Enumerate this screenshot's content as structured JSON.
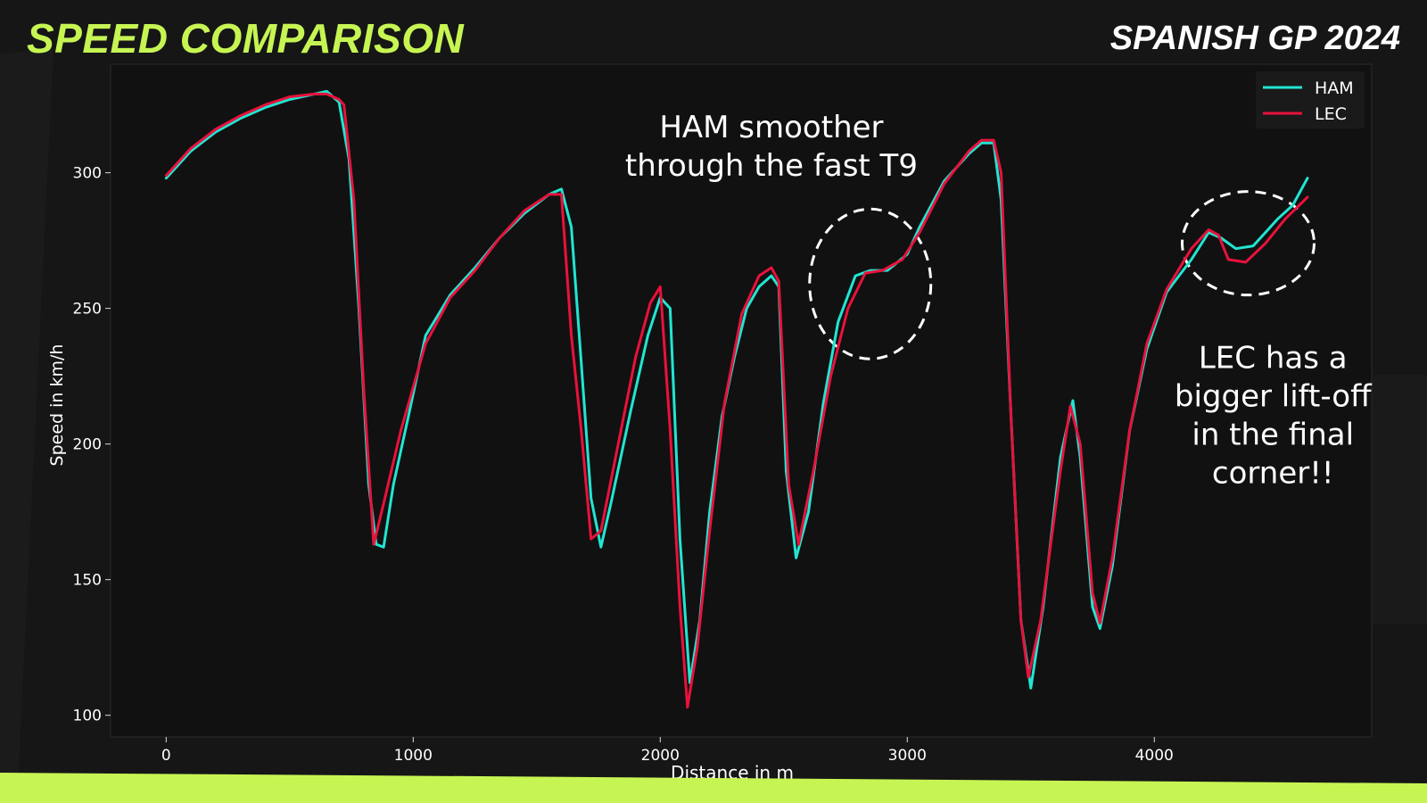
{
  "header": {
    "title": "SPEED COMPARISON",
    "race": "SPANISH GP 2024"
  },
  "colors": {
    "accent": "#c6f553",
    "HAM": "#22e5d2",
    "LEC": "#e8123c",
    "plot_bg": "#111111",
    "page_bg": "#161616"
  },
  "chart_data": {
    "type": "line",
    "title": "SPEED COMPARISON",
    "subtitle": "SPANISH GP 2024",
    "xlabel": "Distance in m",
    "ylabel": "Speed in km/h",
    "xlim": [
      -225,
      4880
    ],
    "ylim": [
      92,
      340
    ],
    "xticks": [
      0,
      1000,
      2000,
      3000,
      4000
    ],
    "yticks": [
      100,
      150,
      200,
      250,
      300
    ],
    "grid": false,
    "legend": "top-right",
    "series": [
      {
        "name": "HAM",
        "color": "#22e5d2",
        "points": [
          [
            0,
            298
          ],
          [
            100,
            308
          ],
          [
            200,
            315
          ],
          [
            300,
            320
          ],
          [
            400,
            324
          ],
          [
            500,
            327
          ],
          [
            600,
            329
          ],
          [
            650,
            330
          ],
          [
            700,
            326
          ],
          [
            740,
            305
          ],
          [
            780,
            250
          ],
          [
            820,
            185
          ],
          [
            850,
            163
          ],
          [
            880,
            162
          ],
          [
            920,
            185
          ],
          [
            980,
            210
          ],
          [
            1050,
            240
          ],
          [
            1150,
            255
          ],
          [
            1250,
            265
          ],
          [
            1350,
            276
          ],
          [
            1450,
            285
          ],
          [
            1550,
            292
          ],
          [
            1600,
            294
          ],
          [
            1640,
            280
          ],
          [
            1680,
            230
          ],
          [
            1720,
            180
          ],
          [
            1760,
            162
          ],
          [
            1800,
            178
          ],
          [
            1880,
            212
          ],
          [
            1950,
            240
          ],
          [
            2000,
            254
          ],
          [
            2040,
            250
          ],
          [
            2080,
            165
          ],
          [
            2120,
            112
          ],
          [
            2160,
            135
          ],
          [
            2200,
            175
          ],
          [
            2250,
            210
          ],
          [
            2300,
            232
          ],
          [
            2350,
            250
          ],
          [
            2400,
            258
          ],
          [
            2450,
            262
          ],
          [
            2480,
            258
          ],
          [
            2510,
            190
          ],
          [
            2550,
            158
          ],
          [
            2600,
            175
          ],
          [
            2660,
            215
          ],
          [
            2720,
            245
          ],
          [
            2790,
            262
          ],
          [
            2850,
            264
          ],
          [
            2920,
            264
          ],
          [
            3000,
            270
          ],
          [
            3050,
            280
          ],
          [
            3150,
            297
          ],
          [
            3250,
            307
          ],
          [
            3300,
            311
          ],
          [
            3350,
            311
          ],
          [
            3380,
            290
          ],
          [
            3420,
            210
          ],
          [
            3460,
            135
          ],
          [
            3500,
            110
          ],
          [
            3550,
            140
          ],
          [
            3620,
            195
          ],
          [
            3670,
            216
          ],
          [
            3700,
            195
          ],
          [
            3750,
            140
          ],
          [
            3780,
            132
          ],
          [
            3830,
            155
          ],
          [
            3900,
            205
          ],
          [
            3970,
            235
          ],
          [
            4050,
            256
          ],
          [
            4150,
            268
          ],
          [
            4220,
            278
          ],
          [
            4270,
            276
          ],
          [
            4330,
            272
          ],
          [
            4400,
            273
          ],
          [
            4450,
            278
          ],
          [
            4500,
            283
          ],
          [
            4560,
            288
          ],
          [
            4620,
            298
          ]
        ]
      },
      {
        "name": "LEC",
        "color": "#e8123c",
        "points": [
          [
            0,
            299
          ],
          [
            100,
            309
          ],
          [
            200,
            316
          ],
          [
            300,
            321
          ],
          [
            400,
            325
          ],
          [
            500,
            328
          ],
          [
            600,
            329
          ],
          [
            650,
            329
          ],
          [
            700,
            327
          ],
          [
            720,
            325
          ],
          [
            760,
            290
          ],
          [
            800,
            220
          ],
          [
            840,
            163
          ],
          [
            880,
            178
          ],
          [
            950,
            205
          ],
          [
            1050,
            237
          ],
          [
            1150,
            254
          ],
          [
            1250,
            264
          ],
          [
            1350,
            276
          ],
          [
            1450,
            286
          ],
          [
            1550,
            292
          ],
          [
            1600,
            292
          ],
          [
            1640,
            240
          ],
          [
            1680,
            205
          ],
          [
            1720,
            165
          ],
          [
            1760,
            168
          ],
          [
            1830,
            200
          ],
          [
            1900,
            232
          ],
          [
            1960,
            252
          ],
          [
            2000,
            258
          ],
          [
            2040,
            205
          ],
          [
            2080,
            140
          ],
          [
            2110,
            103
          ],
          [
            2150,
            125
          ],
          [
            2200,
            168
          ],
          [
            2260,
            215
          ],
          [
            2330,
            248
          ],
          [
            2400,
            262
          ],
          [
            2450,
            265
          ],
          [
            2480,
            260
          ],
          [
            2520,
            185
          ],
          [
            2560,
            163
          ],
          [
            2620,
            190
          ],
          [
            2690,
            225
          ],
          [
            2760,
            250
          ],
          [
            2830,
            263
          ],
          [
            2900,
            264
          ],
          [
            2980,
            268
          ],
          [
            3050,
            278
          ],
          [
            3150,
            296
          ],
          [
            3250,
            308
          ],
          [
            3300,
            312
          ],
          [
            3350,
            312
          ],
          [
            3380,
            300
          ],
          [
            3420,
            210
          ],
          [
            3460,
            135
          ],
          [
            3490,
            114
          ],
          [
            3540,
            135
          ],
          [
            3620,
            190
          ],
          [
            3660,
            214
          ],
          [
            3700,
            200
          ],
          [
            3750,
            145
          ],
          [
            3780,
            134
          ],
          [
            3830,
            158
          ],
          [
            3900,
            205
          ],
          [
            3970,
            237
          ],
          [
            4050,
            257
          ],
          [
            4150,
            272
          ],
          [
            4220,
            279
          ],
          [
            4260,
            277
          ],
          [
            4300,
            268
          ],
          [
            4370,
            267
          ],
          [
            4450,
            274
          ],
          [
            4530,
            283
          ],
          [
            4620,
            291
          ]
        ]
      }
    ],
    "annotations": [
      {
        "text": "HAM smoother\nthrough the fast T9",
        "x": 2450,
        "y": 313
      },
      {
        "text": "LEC has a\nbigger lift-off\nin the final\ncorner!!",
        "x": 4480,
        "y": 228
      }
    ]
  }
}
